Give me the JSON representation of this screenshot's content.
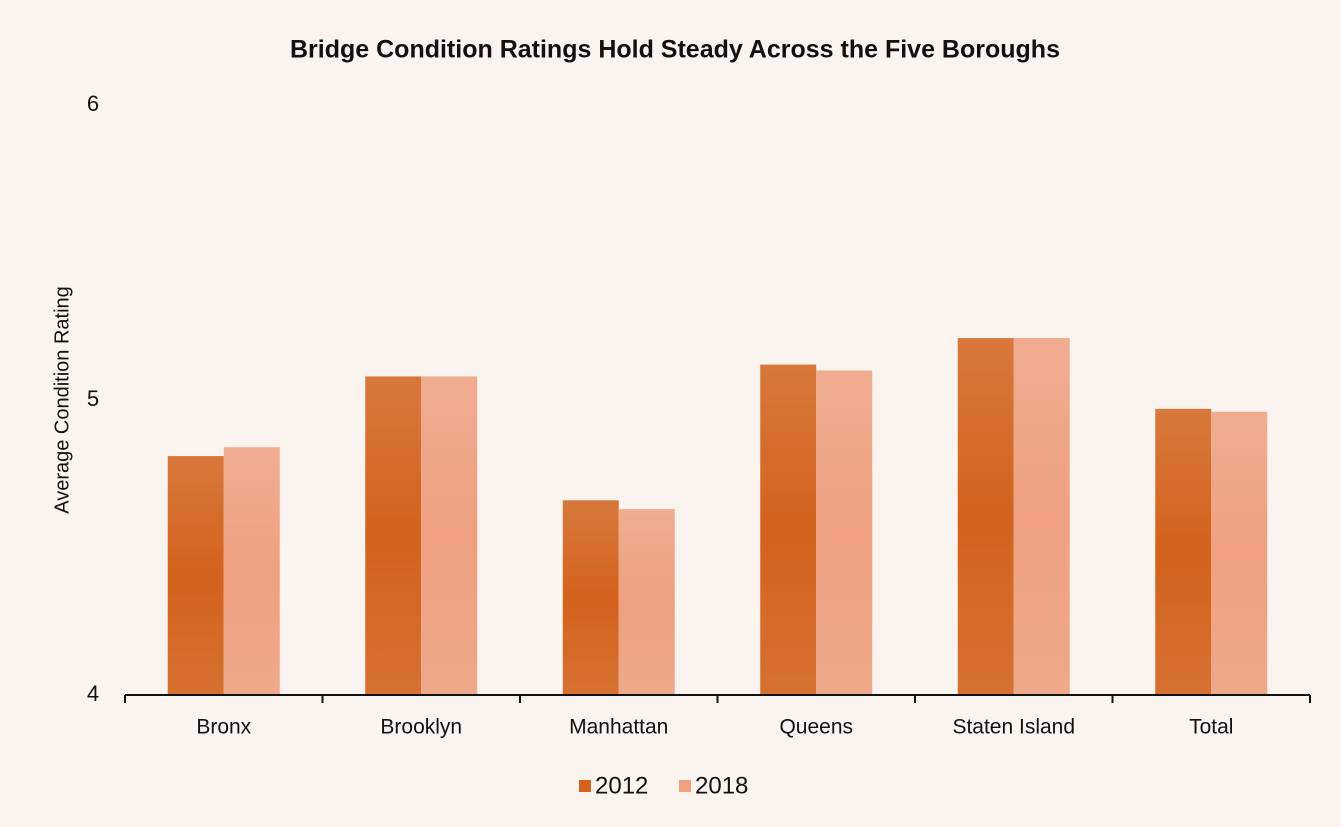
{
  "chart_data": {
    "type": "bar",
    "title": "Bridge Condition Ratings Hold Steady Across the Five Boroughs",
    "y_label": "Average Condition Rating",
    "categories": [
      "Bronx",
      "Brooklyn",
      "Manhattan",
      "Queens",
      "Staten Island",
      "Total"
    ],
    "series": [
      {
        "name": "2012",
        "color": "#d2621c",
        "values": [
          4.81,
          5.08,
          4.66,
          5.12,
          5.21,
          4.97
        ]
      },
      {
        "name": "2018",
        "color": "#eea080",
        "values": [
          4.84,
          5.08,
          4.63,
          5.1,
          5.21,
          4.96
        ]
      }
    ],
    "ylim": [
      4,
      6
    ],
    "yticks": [
      4,
      5,
      6
    ],
    "grid": false,
    "legend": "bottom"
  }
}
